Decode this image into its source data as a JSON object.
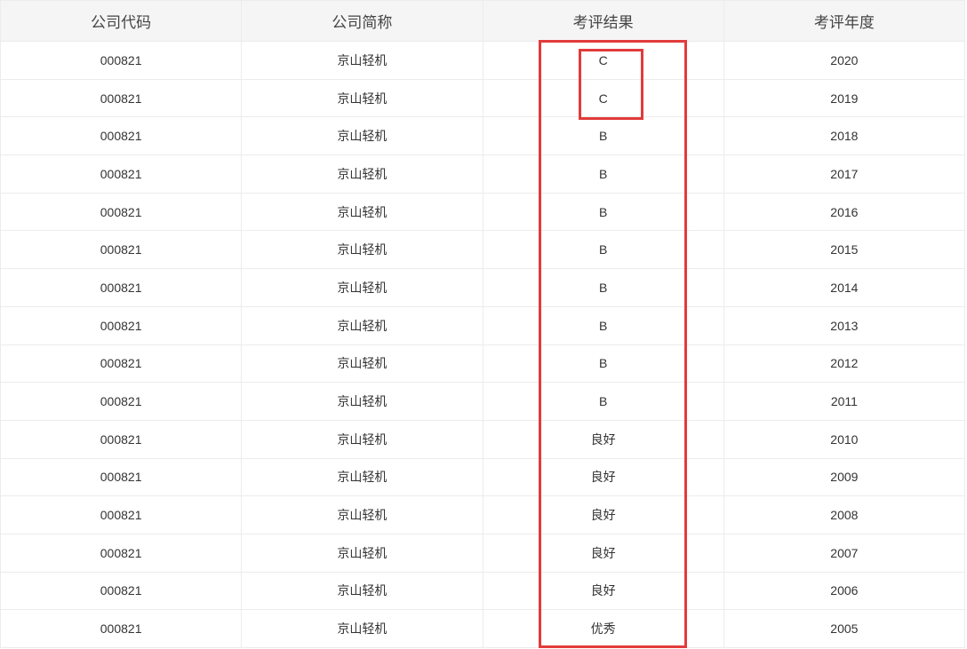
{
  "table": {
    "headers": [
      "公司代码",
      "公司简称",
      "考评结果",
      "考评年度"
    ],
    "rows": [
      [
        "000821",
        "京山轻机",
        "C",
        "2020"
      ],
      [
        "000821",
        "京山轻机",
        "C",
        "2019"
      ],
      [
        "000821",
        "京山轻机",
        "B",
        "2018"
      ],
      [
        "000821",
        "京山轻机",
        "B",
        "2017"
      ],
      [
        "000821",
        "京山轻机",
        "B",
        "2016"
      ],
      [
        "000821",
        "京山轻机",
        "B",
        "2015"
      ],
      [
        "000821",
        "京山轻机",
        "B",
        "2014"
      ],
      [
        "000821",
        "京山轻机",
        "B",
        "2013"
      ],
      [
        "000821",
        "京山轻机",
        "B",
        "2012"
      ],
      [
        "000821",
        "京山轻机",
        "B",
        "2011"
      ],
      [
        "000821",
        "京山轻机",
        "良好",
        "2010"
      ],
      [
        "000821",
        "京山轻机",
        "良好",
        "2009"
      ],
      [
        "000821",
        "京山轻机",
        "良好",
        "2008"
      ],
      [
        "000821",
        "京山轻机",
        "良好",
        "2007"
      ],
      [
        "000821",
        "京山轻机",
        "良好",
        "2006"
      ],
      [
        "000821",
        "京山轻机",
        "优秀",
        "2005"
      ]
    ]
  }
}
